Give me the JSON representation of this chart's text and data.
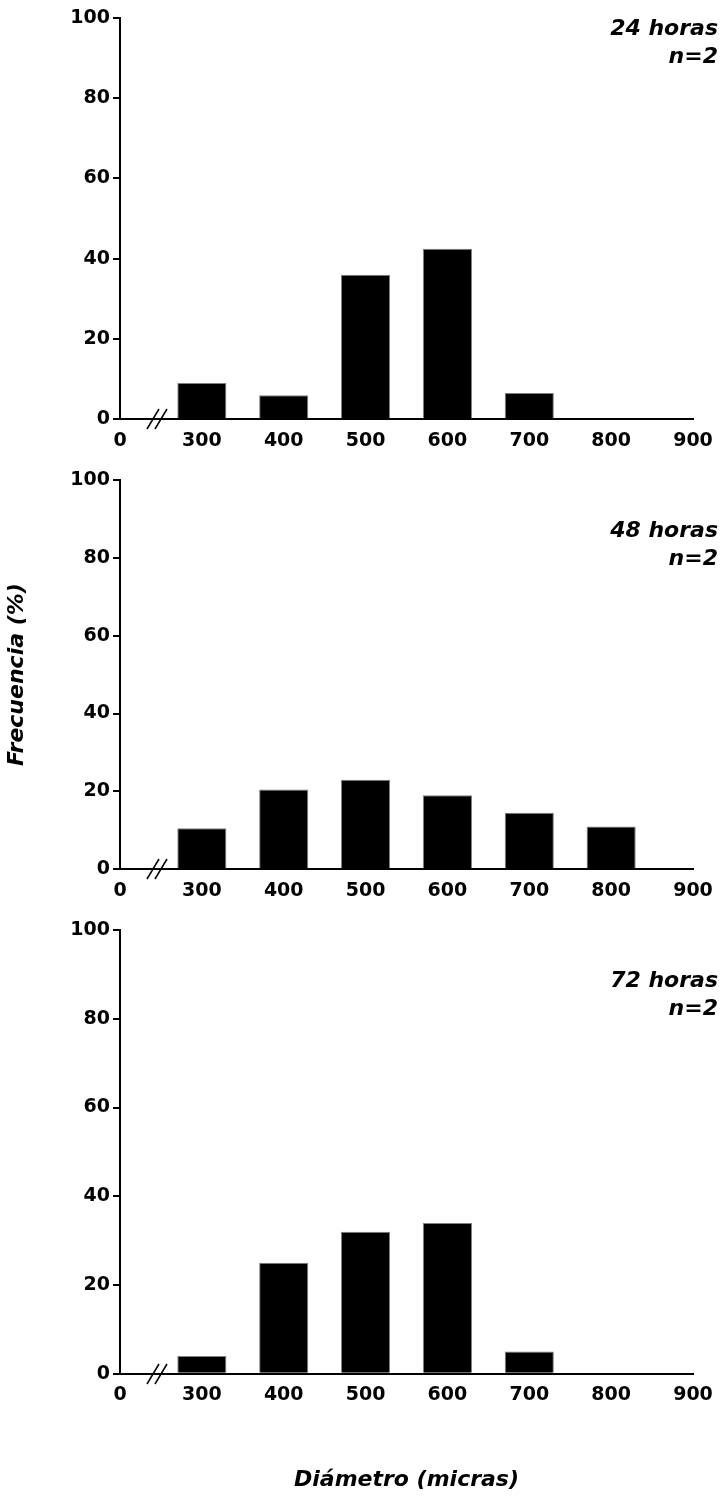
{
  "chart_data": [
    {
      "type": "bar",
      "categories": [
        "0",
        "300",
        "400",
        "500",
        "600",
        "700",
        "800",
        "900"
      ],
      "values": [
        null,
        9,
        6,
        36,
        42.5,
        6.5,
        null,
        null
      ],
      "color": "#000000",
      "ylim": [
        0,
        100
      ],
      "yticks": [
        0,
        20,
        40,
        60,
        80,
        100
      ],
      "grid": false,
      "legend": false,
      "annotations": [
        "24 horas",
        "n=2"
      ]
    },
    {
      "type": "bar",
      "categories": [
        "0",
        "300",
        "400",
        "500",
        "600",
        "700",
        "800",
        "900"
      ],
      "values": [
        null,
        10.5,
        20.5,
        23,
        19,
        14.5,
        11,
        null
      ],
      "color": "#000000",
      "ylim": [
        0,
        100
      ],
      "yticks": [
        0,
        20,
        40,
        60,
        80,
        100
      ],
      "grid": false,
      "legend": false,
      "ylabel": "Frecuencia (%)",
      "annotations": [
        "48 horas",
        "n=2"
      ]
    },
    {
      "type": "bar",
      "categories": [
        "0",
        "300",
        "400",
        "500",
        "600",
        "700",
        "800",
        "900"
      ],
      "values": [
        null,
        4,
        25,
        32,
        34,
        5,
        null,
        null
      ],
      "color": "#000000",
      "ylim": [
        0,
        100
      ],
      "yticks": [
        0,
        20,
        40,
        60,
        80,
        100
      ],
      "grid": false,
      "legend": false,
      "xlabel": "Diámetro (micras)",
      "annotations": [
        "72 horas",
        "n=2"
      ]
    }
  ]
}
